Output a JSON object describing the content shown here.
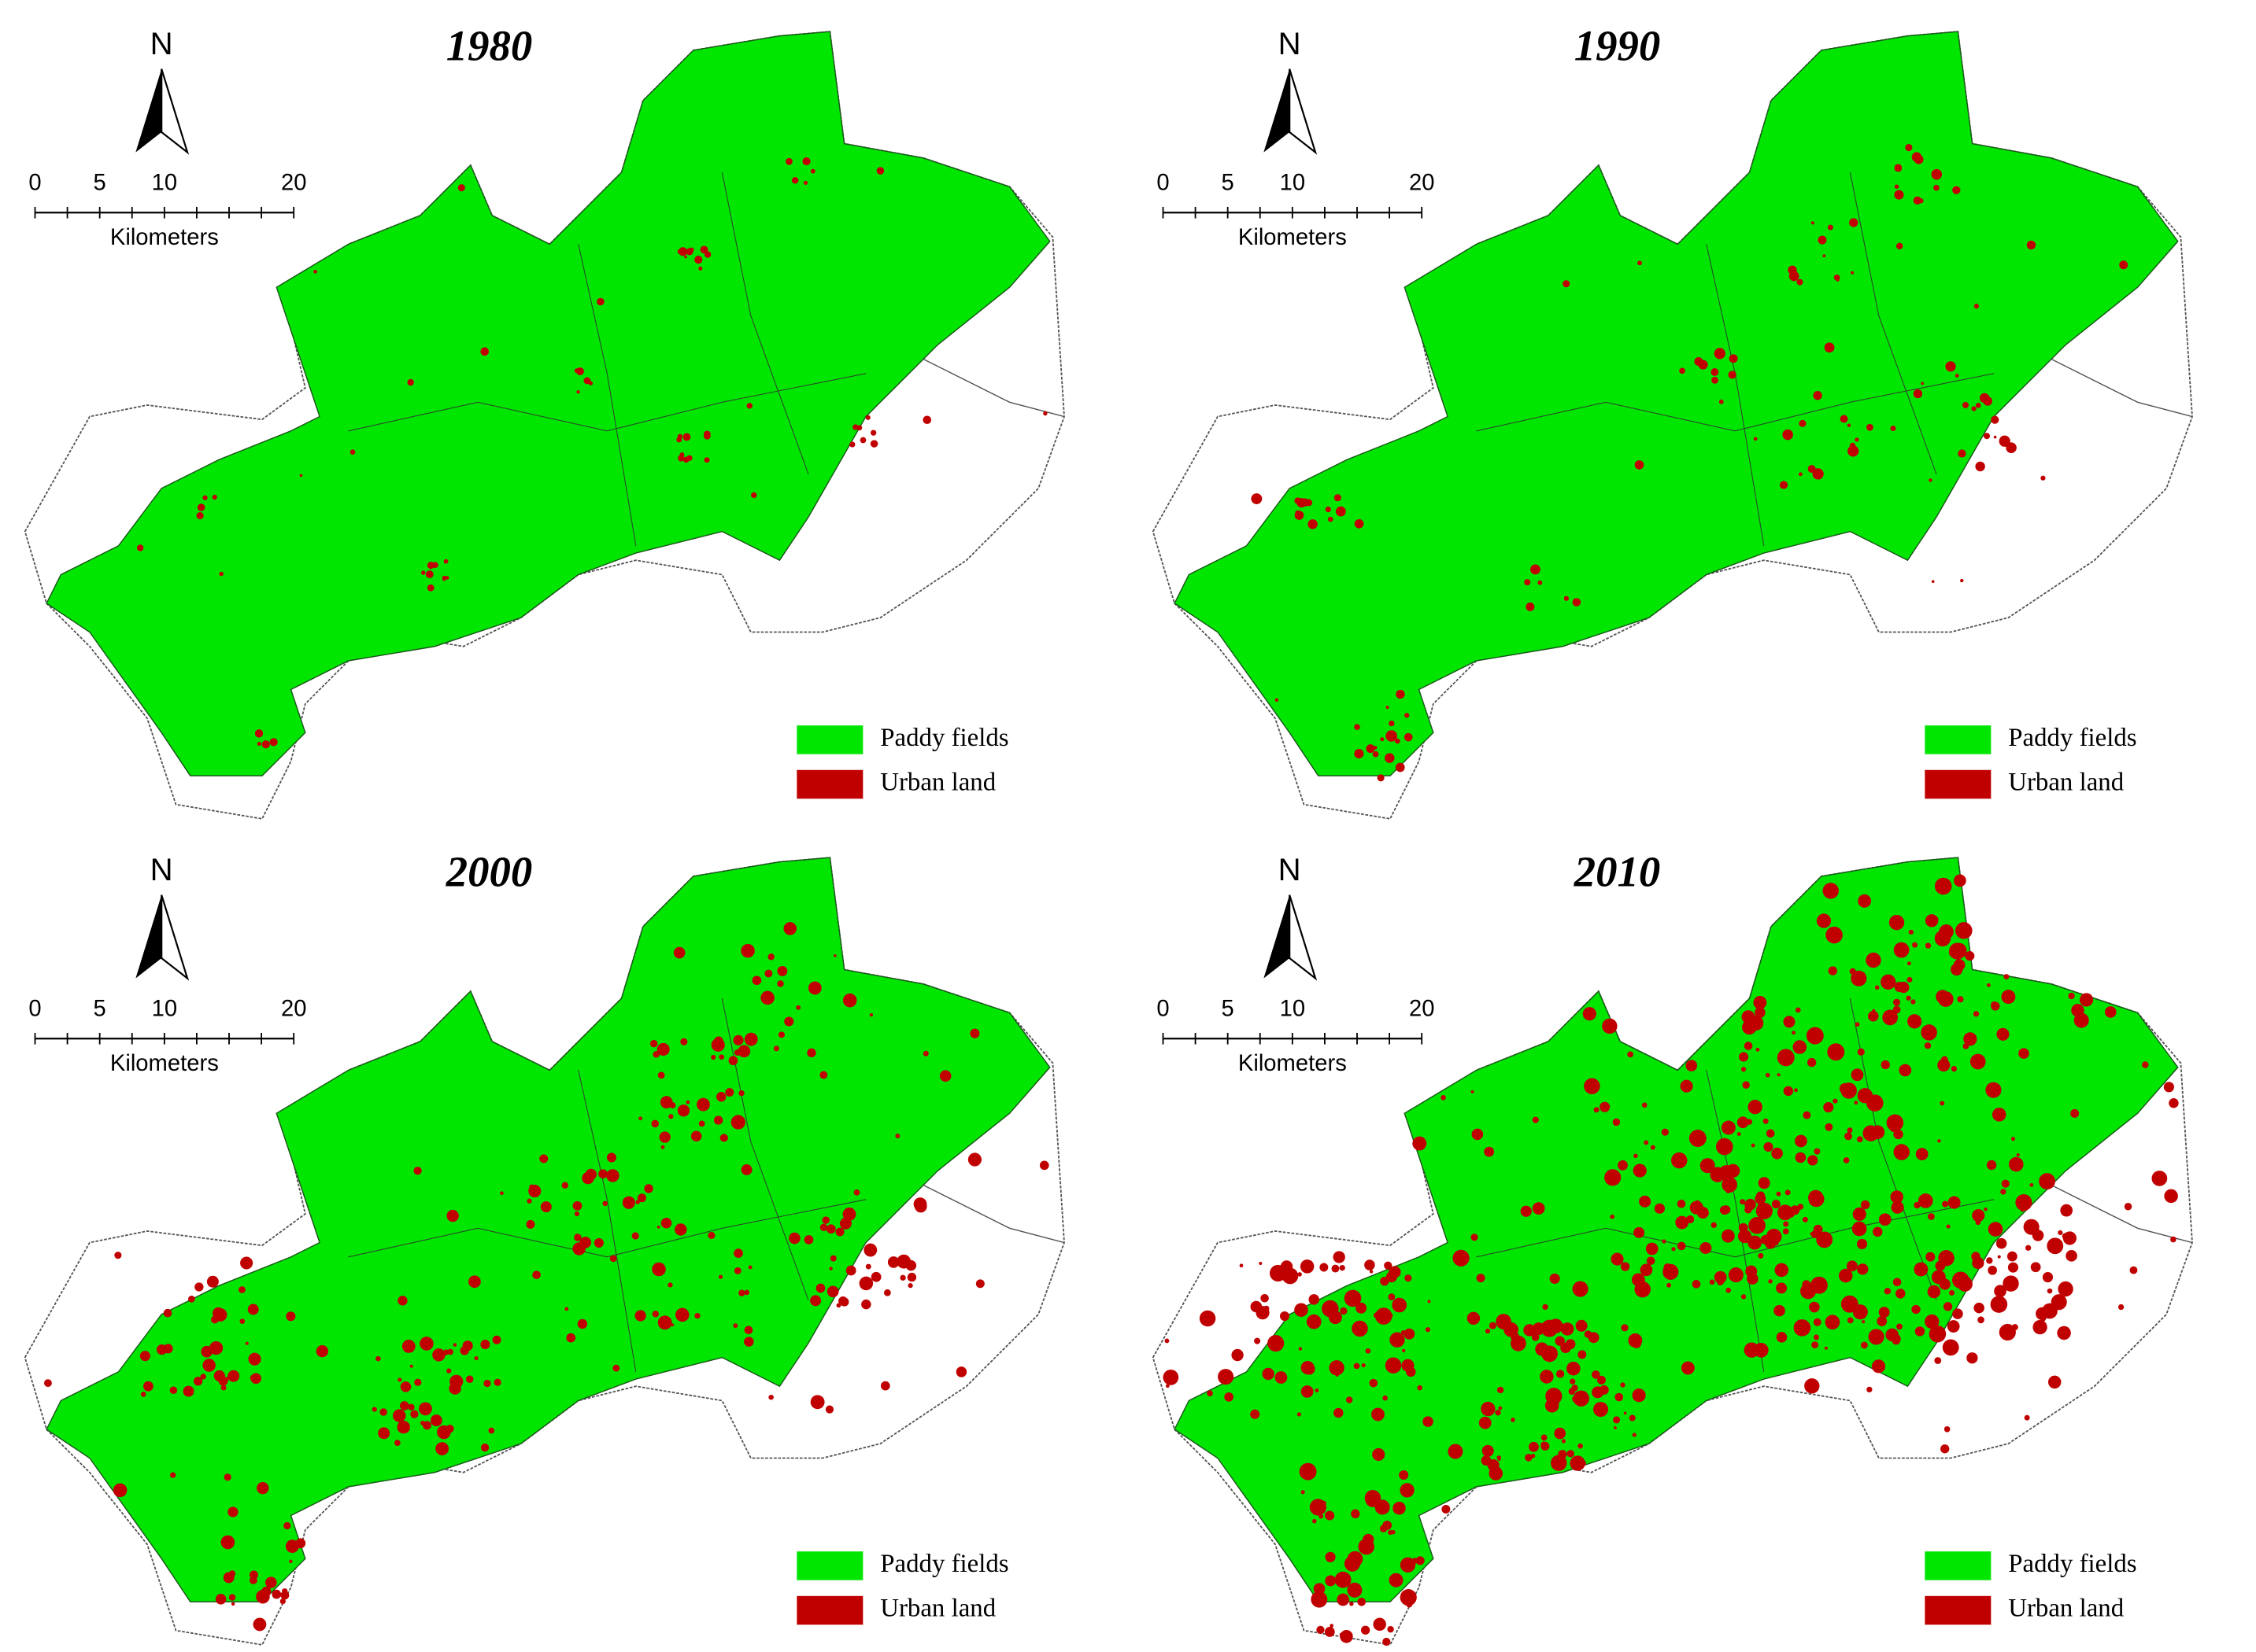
{
  "panels": [
    {
      "title": "1980",
      "north": "N",
      "scale": {
        "labels": [
          "0",
          "5",
          "10",
          "20"
        ],
        "unit": "Kilometers"
      },
      "legend": [
        {
          "label": "Paddy fields",
          "color": "#00e600"
        },
        {
          "label": "Urban land",
          "color": "#c00000"
        }
      ]
    },
    {
      "title": "1990",
      "north": "N",
      "scale": {
        "labels": [
          "0",
          "5",
          "10",
          "20"
        ],
        "unit": "Kilometers"
      },
      "legend": [
        {
          "label": "Paddy fields",
          "color": "#00e600"
        },
        {
          "label": "Urban land",
          "color": "#c00000"
        }
      ]
    },
    {
      "title": "2000",
      "north": "N",
      "scale": {
        "labels": [
          "0",
          "5",
          "10",
          "20"
        ],
        "unit": "Kilometers"
      },
      "legend": [
        {
          "label": "Paddy fields",
          "color": "#00e600"
        },
        {
          "label": "Urban land",
          "color": "#c00000"
        }
      ]
    },
    {
      "title": "2010",
      "north": "N",
      "scale": {
        "labels": [
          "0",
          "5",
          "10",
          "20"
        ],
        "unit": "Kilometers"
      },
      "legend": [
        {
          "label": "Paddy fields",
          "color": "#00e600"
        },
        {
          "label": "Urban land",
          "color": "#c00000"
        }
      ]
    }
  ]
}
